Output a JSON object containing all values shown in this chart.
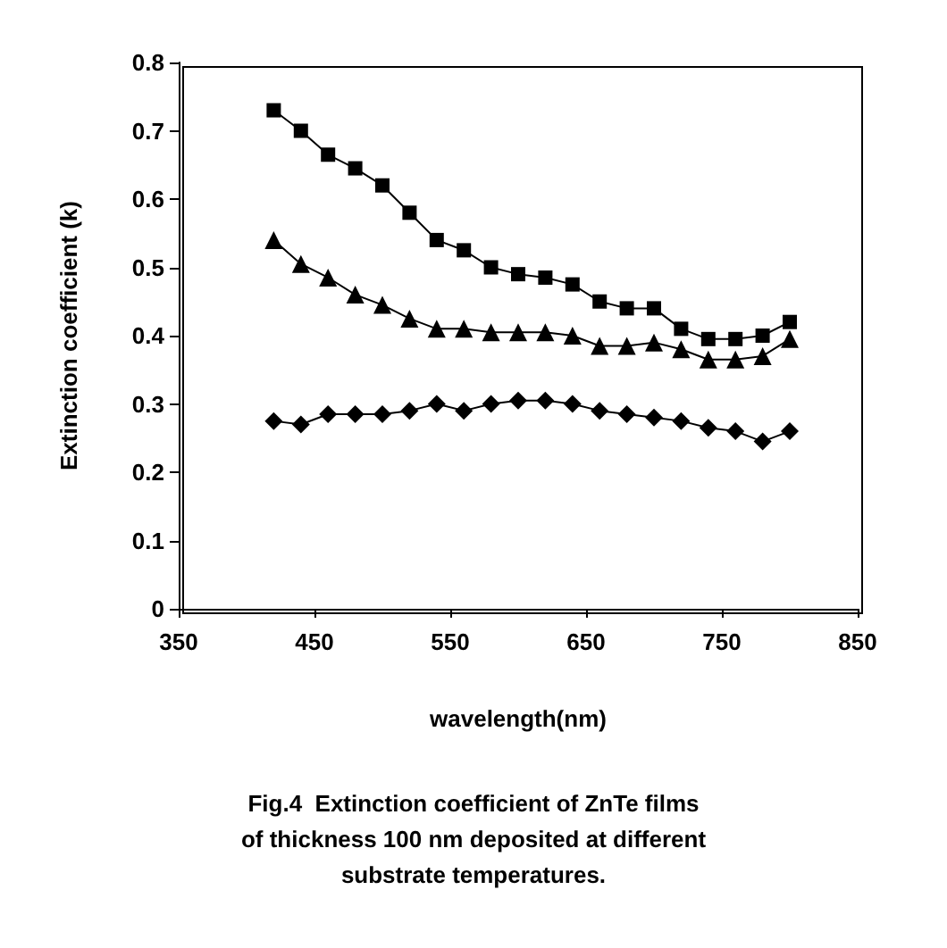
{
  "chart_data": {
    "type": "line",
    "xlabel": "wavelength(nm)",
    "ylabel": "Extinction coefficient (k)",
    "annotations": [
      "Fig.4  Extinction coefficient of ZnTe films\nof thickness 100 nm deposited at different\nsubstrate temperatures."
    ],
    "x": [
      420,
      440,
      460,
      480,
      500,
      520,
      540,
      560,
      580,
      600,
      620,
      640,
      660,
      680,
      700,
      720,
      740,
      760,
      780,
      800
    ],
    "series": [
      {
        "color": "#000000",
        "marker": "square",
        "values": [
          0.73,
          0.7,
          0.665,
          0.645,
          0.62,
          0.58,
          0.54,
          0.525,
          0.5,
          0.49,
          0.485,
          0.475,
          0.45,
          0.44,
          0.44,
          0.41,
          0.395,
          0.395,
          0.4,
          0.42
        ]
      },
      {
        "color": "#000000",
        "marker": "triangle",
        "values": [
          0.54,
          0.505,
          0.485,
          0.46,
          0.445,
          0.425,
          0.41,
          0.41,
          0.405,
          0.405,
          0.405,
          0.4,
          0.385,
          0.385,
          0.39,
          0.38,
          0.365,
          0.365,
          0.37,
          0.395
        ]
      },
      {
        "color": "#000000",
        "marker": "diamond",
        "values": [
          0.275,
          0.27,
          0.285,
          0.285,
          0.285,
          0.29,
          0.3,
          0.29,
          0.3,
          0.305,
          0.305,
          0.3,
          0.29,
          0.285,
          0.28,
          0.275,
          0.265,
          0.26,
          0.245,
          0.26
        ]
      }
    ],
    "xlim": [
      350,
      850
    ],
    "xticks": [
      350,
      450,
      550,
      650,
      750,
      850
    ],
    "ylim": [
      0,
      0.8
    ],
    "yticks": [
      0,
      0.1,
      0.2,
      0.3,
      0.4,
      0.5,
      0.6,
      0.7,
      0.8
    ],
    "grid": false,
    "line_style": "solid"
  }
}
